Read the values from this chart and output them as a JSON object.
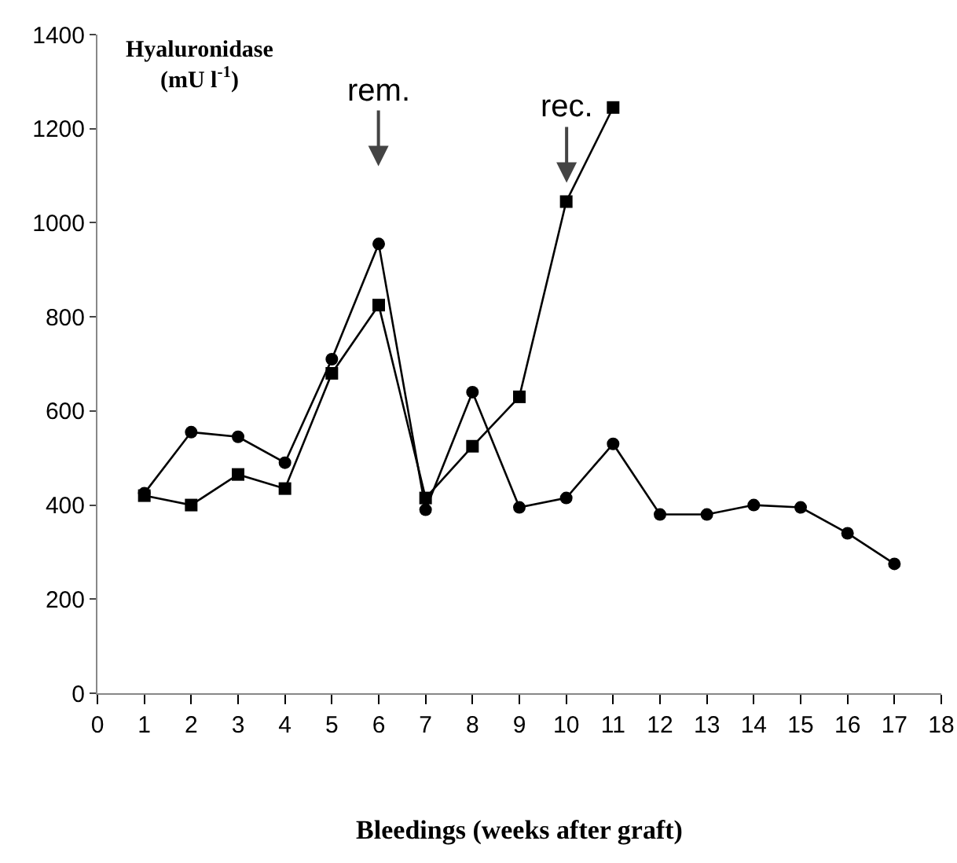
{
  "chart_data": {
    "type": "line",
    "xlabel": "Bleedings (weeks after graft)",
    "ylabel": "Hyaluronidase (mU l$^{-1}$)",
    "series": [
      {
        "color": "#000000",
        "marker": "circle",
        "x": [
          1,
          2,
          3,
          4,
          5,
          6,
          7,
          8,
          9,
          10,
          11,
          12,
          13,
          14,
          15,
          16,
          17
        ],
        "values": [
          425,
          555,
          545,
          490,
          710,
          955,
          390,
          640,
          395,
          415,
          530,
          380,
          380,
          400,
          395,
          340,
          275
        ]
      },
      {
        "color": "#000000",
        "marker": "square",
        "x": [
          1,
          2,
          3,
          4,
          5,
          6,
          7,
          8,
          9,
          10,
          11
        ],
        "values": [
          420,
          400,
          465,
          435,
          680,
          825,
          415,
          525,
          630,
          1045,
          1245
        ]
      }
    ],
    "xlim": [
      0,
      18
    ],
    "xticks": [
      0,
      1,
      2,
      3,
      4,
      5,
      6,
      7,
      8,
      9,
      10,
      11,
      12,
      13,
      14,
      15,
      16,
      17,
      18
    ],
    "ylim": [
      0,
      1400
    ],
    "yticks": [
      0,
      200,
      400,
      600,
      800,
      1000,
      1200,
      1400
    ],
    "grid": false,
    "line_style": "solid",
    "annotations": [
      "rem.",
      "rec."
    ]
  }
}
